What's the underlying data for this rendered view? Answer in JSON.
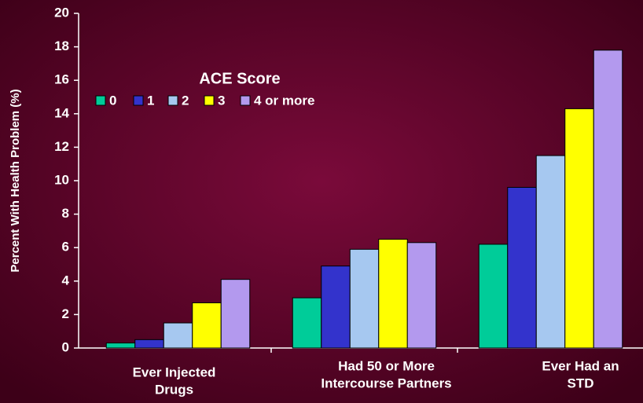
{
  "chart_data": {
    "type": "bar",
    "ylabel": "Percent With Health Problem (%)",
    "legend_title": "ACE Score",
    "categories": [
      [
        "Ever Injected",
        "Drugs"
      ],
      [
        "Had 50 or More",
        "Intercourse Partners"
      ],
      [
        "Ever Had an",
        "STD"
      ]
    ],
    "series": [
      {
        "name": "0",
        "color": "#00cc99",
        "values": [
          0.3,
          3.0,
          6.2
        ]
      },
      {
        "name": "1",
        "color": "#3333cc",
        "values": [
          0.5,
          4.9,
          9.6
        ]
      },
      {
        "name": "2",
        "color": "#a6c8f0",
        "values": [
          1.5,
          5.9,
          11.5
        ]
      },
      {
        "name": "3",
        "color": "#ffff00",
        "values": [
          2.7,
          6.5,
          14.3
        ]
      },
      {
        "name": "4 or more",
        "color": "#b399ee",
        "values": [
          4.1,
          6.3,
          17.8
        ]
      }
    ],
    "ylim": [
      0,
      20
    ],
    "yticks": [
      0,
      2,
      4,
      6,
      8,
      10,
      12,
      14,
      16,
      18,
      20
    ]
  }
}
